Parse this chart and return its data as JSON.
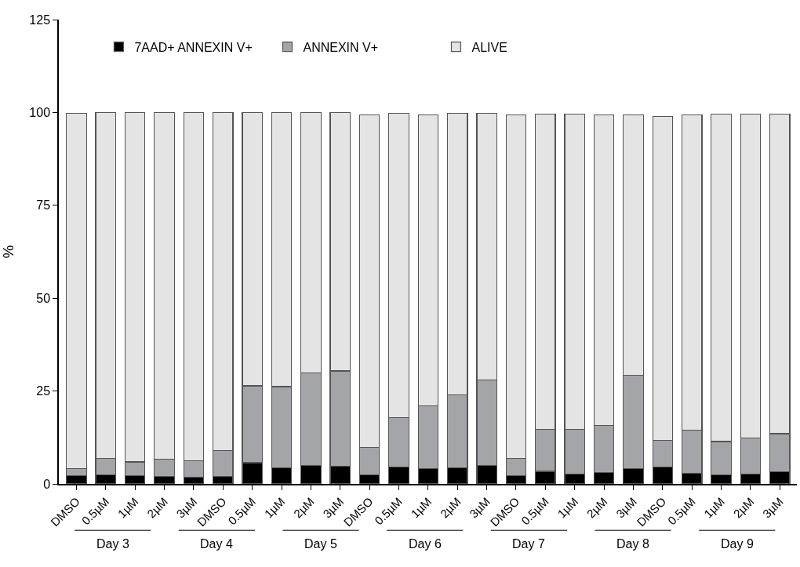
{
  "chart_data": {
    "type": "bar",
    "stacked": true,
    "ylabel": "%",
    "categories": [
      "DMSO",
      "0.5µM",
      "1µM",
      "2µM",
      "3µM",
      "DMSO",
      "0.5µM",
      "1µM",
      "2µM",
      "3µM",
      "DMSO",
      "0.5µM",
      "1µM",
      "2µM",
      "3µM",
      "DMSO",
      "0.5µM",
      "1µM",
      "2µM",
      "3µM",
      "DMSO",
      "0.5µM",
      "1µM",
      "2µM",
      "3µM"
    ],
    "series": [
      {
        "name": "7AAD+ ANNEXIN V+",
        "color": "#000000",
        "values": [
          2.2,
          2.4,
          2.2,
          2.0,
          1.8,
          2.0,
          5.7,
          4.3,
          5.0,
          4.8,
          2.4,
          4.6,
          4.1,
          4.3,
          5.0,
          2.2,
          3.4,
          2.6,
          3.0,
          4.1,
          4.5,
          2.9,
          2.4,
          2.6,
          3.2
        ]
      },
      {
        "name": "ANNEXIN V+",
        "color": "#a4a5a9",
        "values": [
          1.9,
          4.4,
          3.7,
          4.6,
          4.4,
          7.0,
          20.7,
          21.9,
          24.8,
          25.6,
          7.4,
          13.3,
          16.9,
          19.7,
          23.0,
          4.7,
          11.3,
          12.0,
          12.7,
          25.1,
          7.3,
          11.5,
          9.0,
          9.8,
          10.3
        ]
      },
      {
        "name": "ALIVE",
        "color": "#e4e4e4",
        "values": [
          95.7,
          93.1,
          94.0,
          93.4,
          93.7,
          91.0,
          73.6,
          73.7,
          70.2,
          69.6,
          89.6,
          81.9,
          78.4,
          75.8,
          71.7,
          92.5,
          84.9,
          84.9,
          83.7,
          70.2,
          87.1,
          85.0,
          88.2,
          87.2,
          86.1
        ]
      }
    ],
    "ylim": [
      0,
      125
    ],
    "yticks": [
      0,
      25,
      50,
      75,
      100,
      125
    ],
    "legend": "top left",
    "annotations": [
      "Day 3",
      "Day 4",
      "Day 5",
      "Day 6",
      "Day 7",
      "Day 8",
      "Day 9"
    ]
  }
}
